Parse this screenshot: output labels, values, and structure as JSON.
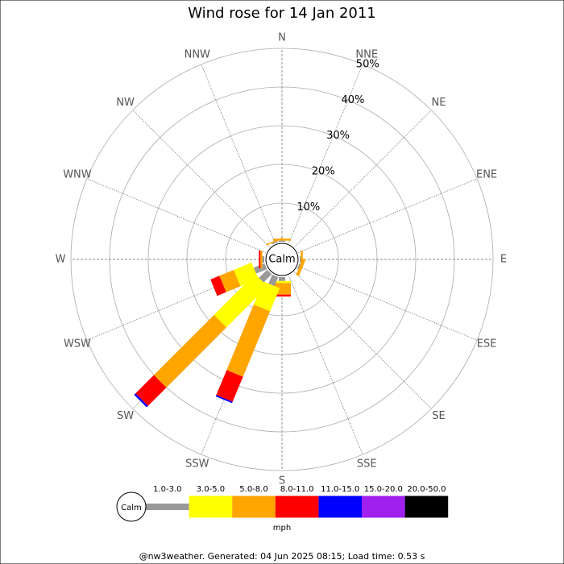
{
  "chart_data": {
    "type": "windrose",
    "title": "Wind rose for 14 Jan 2011",
    "categories": [
      "N",
      "NNE",
      "NE",
      "ENE",
      "E",
      "ESE",
      "SE",
      "SSE",
      "S",
      "SSW",
      "SW",
      "WSW",
      "W",
      "WNW",
      "NW",
      "NNW"
    ],
    "series": [
      {
        "name": "1.0-3.0",
        "color": "#999999",
        "values": [
          0.3,
          0,
          0,
          0,
          0.3,
          0.3,
          0,
          0,
          1,
          2.5,
          3,
          3,
          0.5,
          0,
          0,
          0.3
        ]
      },
      {
        "name": "3.0-5.0",
        "color": "#ffff00",
        "values": [
          0,
          0,
          0,
          0,
          0,
          0,
          0,
          0,
          0.5,
          6.5,
          15,
          5,
          0,
          0,
          0,
          0
        ]
      },
      {
        "name": "5.0-8.0",
        "color": "#ffa500",
        "values": [
          0.5,
          0,
          0,
          0,
          0.5,
          0.8,
          0,
          0,
          3,
          18.3,
          22,
          4,
          0.5,
          0,
          0,
          0.3
        ]
      },
      {
        "name": "8.0-11.0",
        "color": "#ff0000",
        "values": [
          0,
          0,
          0,
          0,
          0,
          0,
          0,
          0,
          0.5,
          7,
          6.7,
          2.5,
          0.4,
          0,
          0,
          0
        ]
      },
      {
        "name": "11.0-15.0",
        "color": "#0000ff",
        "values": [
          0,
          0,
          0,
          0,
          0,
          0,
          0,
          0,
          0,
          0.4,
          0.5,
          0,
          0,
          0,
          0,
          0
        ]
      },
      {
        "name": "15.0-20.0",
        "color": "#a020f0",
        "values": [
          0,
          0,
          0,
          0,
          0,
          0,
          0,
          0,
          0,
          0,
          0,
          0,
          0,
          0,
          0,
          0
        ]
      },
      {
        "name": "20.0-50.0",
        "color": "#000000",
        "values": [
          0,
          0,
          0,
          0,
          0,
          0,
          0,
          0,
          0,
          0,
          0,
          0,
          0,
          0,
          0,
          0
        ]
      }
    ],
    "rlim": [
      0,
      50
    ],
    "rticks": [
      {
        "value": 10,
        "label": "10%"
      },
      {
        "value": 20,
        "label": "20%"
      },
      {
        "value": 30,
        "label": "30%"
      },
      {
        "value": 40,
        "label": "40%"
      },
      {
        "value": 50,
        "label": "50%"
      }
    ],
    "calm_label": "Calm",
    "legend_unit": "mph",
    "footer": "@nw3weather. Generated: 04 Jun 2025 08:15; Load time: 0.53 s"
  }
}
